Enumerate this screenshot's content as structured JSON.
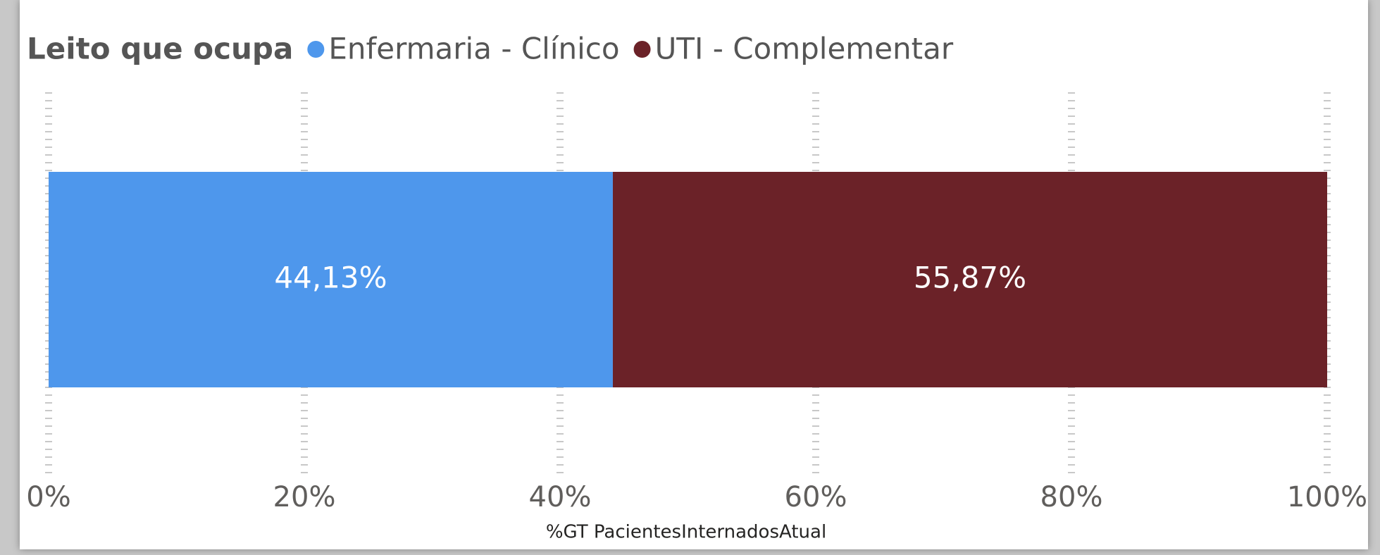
{
  "chart_data": {
    "type": "bar",
    "orientation": "horizontal",
    "stacked": true,
    "legend_title": "Leito que ocupa",
    "legend_position": "top-left",
    "categories": [
      null
    ],
    "series": [
      {
        "name": "Enfermaria - Clínico",
        "color": "#4e97ec",
        "values": [
          44.13
        ],
        "value_labels": [
          "44,13%"
        ]
      },
      {
        "name": "UTI - Complementar",
        "color": "#6b2228",
        "values": [
          55.87
        ],
        "value_labels": [
          "55,87%"
        ]
      }
    ],
    "xlim": [
      0,
      100
    ],
    "xticks": [
      {
        "value": 0,
        "label": "0%"
      },
      {
        "value": 20,
        "label": "20%"
      },
      {
        "value": 40,
        "label": "40%"
      },
      {
        "value": 60,
        "label": "60%"
      },
      {
        "value": 80,
        "label": "80%"
      },
      {
        "value": 100,
        "label": "100%"
      }
    ],
    "xlabel": "%GT PacientesInternadosAtual",
    "grid": true
  }
}
